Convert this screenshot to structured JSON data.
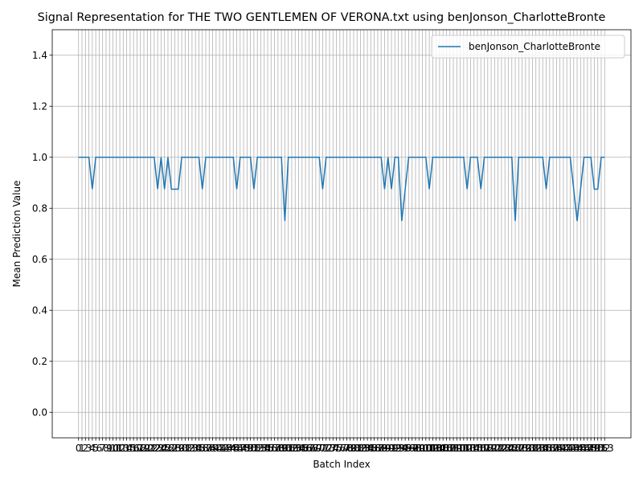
{
  "chart_data": {
    "type": "line",
    "title": "Signal Representation for THE TWO GENTLEMEN OF VERONA.txt using benJonson_CharlotteBronte",
    "xlabel": "Batch Index",
    "ylabel": "Mean Prediction Value",
    "x": [
      0,
      1,
      2,
      3,
      4,
      5,
      6,
      7,
      8,
      9,
      10,
      11,
      12,
      13,
      14,
      15,
      16,
      17,
      18,
      19,
      20,
      21,
      22,
      23,
      24,
      25,
      26,
      27,
      28,
      29,
      30,
      31,
      32,
      33,
      34,
      35,
      36,
      37,
      38,
      39,
      40,
      41,
      42,
      43,
      44,
      45,
      46,
      47,
      48,
      49,
      50,
      51,
      52,
      53,
      54,
      55,
      56,
      57,
      58,
      59,
      60,
      61,
      62,
      63,
      64,
      65,
      66,
      67,
      68,
      69,
      70,
      71,
      72,
      73,
      74,
      75,
      76,
      77,
      78,
      79,
      80,
      81,
      82,
      83,
      84,
      85,
      86,
      87,
      88,
      89,
      90,
      91,
      92,
      93,
      94,
      95,
      96,
      97,
      98,
      99,
      100,
      101,
      102,
      103,
      104,
      105,
      106,
      107,
      108,
      109,
      110,
      111,
      112,
      113,
      114,
      115,
      116,
      117,
      118,
      119,
      120,
      121,
      122,
      123,
      124,
      125,
      126,
      127,
      128,
      129,
      130,
      131,
      132,
      133,
      134,
      135,
      136,
      137,
      138,
      139,
      140,
      141,
      142,
      143,
      144,
      145,
      146,
      147,
      148,
      149,
      150,
      151,
      152,
      153
    ],
    "series": [
      {
        "name": "benJonson_CharlotteBronte",
        "color": "#1f77b4",
        "values": [
          1,
          1,
          1,
          1,
          0.875,
          1,
          1,
          1,
          1,
          1,
          1,
          1,
          1,
          1,
          1,
          1,
          1,
          1,
          1,
          1,
          1,
          1,
          1,
          0.875,
          1,
          0.875,
          1,
          0.875,
          0.875,
          0.875,
          1,
          1,
          1,
          1,
          1,
          1,
          0.875,
          1,
          1,
          1,
          1,
          1,
          1,
          1,
          1,
          1,
          0.875,
          1,
          1,
          1,
          1,
          0.875,
          1,
          1,
          1,
          1,
          1,
          1,
          1,
          1,
          0.75,
          1,
          1,
          1,
          1,
          1,
          1,
          1,
          1,
          1,
          1,
          0.875,
          1,
          1,
          1,
          1,
          1,
          1,
          1,
          1,
          1,
          1,
          1,
          1,
          1,
          1,
          1,
          1,
          1,
          0.875,
          1,
          0.875,
          1,
          1,
          0.75,
          0.875,
          1,
          1,
          1,
          1,
          1,
          1,
          0.875,
          1,
          1,
          1,
          1,
          1,
          1,
          1,
          1,
          1,
          1,
          0.875,
          1,
          1,
          1,
          0.875,
          1,
          1,
          1,
          1,
          1,
          1,
          1,
          1,
          1,
          0.75,
          1,
          1,
          1,
          1,
          1,
          1,
          1,
          1,
          0.875,
          1,
          1,
          1,
          1,
          1,
          1,
          1,
          0.875,
          0.75,
          0.875,
          1,
          1,
          1,
          0.875,
          0.875,
          1,
          1
        ]
      }
    ],
    "xlim": [
      -7.65,
      160.65
    ],
    "xticks": [
      0,
      1,
      2,
      3,
      4,
      5,
      6,
      7,
      8,
      9,
      10,
      11,
      12,
      13,
      14,
      15,
      16,
      17,
      18,
      19,
      20,
      21,
      22,
      23,
      24,
      25,
      26,
      27,
      28,
      29,
      30,
      31,
      32,
      33,
      34,
      35,
      36,
      37,
      38,
      39,
      40,
      41,
      42,
      43,
      44,
      45,
      46,
      47,
      48,
      49,
      50,
      51,
      52,
      53,
      54,
      55,
      56,
      57,
      58,
      59,
      60,
      61,
      62,
      63,
      64,
      65,
      66,
      67,
      68,
      69,
      70,
      71,
      72,
      73,
      74,
      75,
      76,
      77,
      78,
      79,
      80,
      81,
      82,
      83,
      84,
      85,
      86,
      87,
      88,
      89,
      90,
      91,
      92,
      93,
      94,
      95,
      96,
      97,
      98,
      99,
      100,
      101,
      102,
      103,
      104,
      105,
      106,
      107,
      108,
      109,
      110,
      111,
      112,
      113,
      114,
      115,
      116,
      117,
      118,
      119,
      120,
      121,
      122,
      123,
      124,
      125,
      126,
      127,
      128,
      129,
      130,
      131,
      132,
      133,
      134,
      135,
      136,
      137,
      138,
      139,
      140,
      141,
      142,
      143,
      144,
      145,
      146,
      147,
      148,
      149,
      150,
      151,
      152,
      153
    ],
    "ylim": [
      -0.1,
      1.5
    ],
    "yticks": [
      {
        "value": 0,
        "label": "0.0"
      },
      {
        "value": 0.2,
        "label": "0.2"
      },
      {
        "value": 0.4,
        "label": "0.4"
      },
      {
        "value": 0.6,
        "label": "0.6"
      },
      {
        "value": 0.8,
        "label": "0.8"
      },
      {
        "value": 1,
        "label": "1.0"
      },
      {
        "value": 1.2,
        "label": "1.2"
      },
      {
        "value": 1.4,
        "label": "1.4"
      }
    ],
    "grid": true,
    "legend": "upper right"
  }
}
